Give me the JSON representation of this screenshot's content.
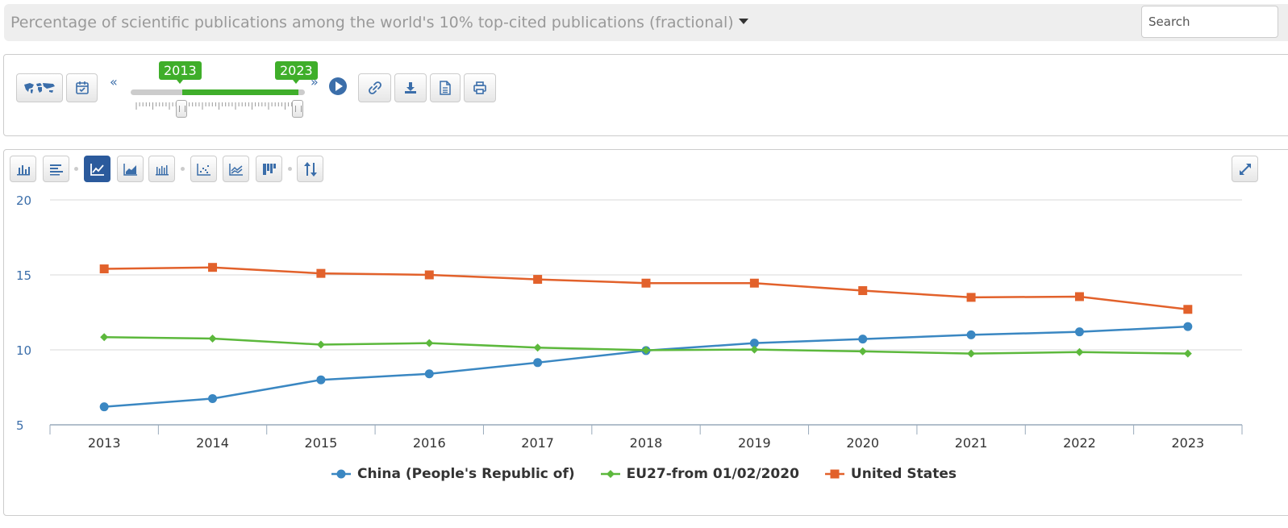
{
  "header": {
    "title": "Percentage of scientific publications among the world's 10% top-cited publications (fractional)",
    "search_placeholder": "Search"
  },
  "time_slider": {
    "start_year": "2013",
    "end_year": "2023",
    "prev_label": "«",
    "next_label": "»"
  },
  "toolbar_icons": [
    "world-map-icon",
    "calendar-check-icon",
    "link-icon",
    "download-icon",
    "document-icon",
    "print-icon"
  ],
  "chart_type_icons": [
    "bar-chart-icon",
    "horizontal-bar-icon",
    "line-chart-icon",
    "area-chart-icon",
    "stacked-bar-icon",
    "scatter-icon",
    "multi-line-icon",
    "heatmap-icon",
    "sort-icon",
    "expand-icon"
  ],
  "colors": {
    "China (People's Republic of)": "#3a87c2",
    "EU27-from 01/02/2020": "#5cb83c",
    "United States": "#e2612b",
    "accent": "#3fae2a",
    "active_button": "#2b5a9c"
  },
  "chart_data": {
    "type": "line",
    "title": "Percentage of scientific publications among the world's 10% top-cited publications (fractional)",
    "x": [
      "2013",
      "2014",
      "2015",
      "2016",
      "2017",
      "2018",
      "2019",
      "2020",
      "2021",
      "2022",
      "2023"
    ],
    "ylim": [
      5,
      20
    ],
    "yticks": [
      "5",
      "10",
      "15",
      "20"
    ],
    "grid": true,
    "legend_position": "bottom",
    "series": [
      {
        "name": "China (People's Republic of)",
        "marker": "circle",
        "values": [
          6.2,
          6.75,
          8.0,
          8.4,
          9.15,
          9.95,
          10.45,
          10.72,
          11.0,
          11.2,
          11.55
        ]
      },
      {
        "name": "EU27-from 01/02/2020",
        "marker": "diamond",
        "values": [
          10.85,
          10.75,
          10.35,
          10.45,
          10.15,
          9.98,
          10.02,
          9.9,
          9.75,
          9.85,
          9.75
        ]
      },
      {
        "name": "United States",
        "marker": "square",
        "values": [
          15.4,
          15.5,
          15.1,
          15.0,
          14.7,
          14.45,
          14.45,
          13.95,
          13.5,
          13.55,
          12.7
        ]
      }
    ]
  }
}
